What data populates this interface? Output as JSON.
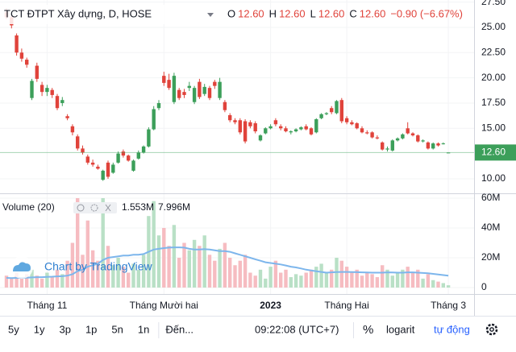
{
  "chart_data": {
    "type": "candlestick",
    "title": "TCT ĐTPT Xây dựng, D, HOSE",
    "legend": [
      {
        "label": "O",
        "value": "12.60"
      },
      {
        "label": "H",
        "value": "12.60"
      },
      {
        "label": "L",
        "value": "12.60"
      },
      {
        "label": "C",
        "value": "12.60"
      }
    ],
    "change": "−0.90 (−6.67%)",
    "categories": [
      null,
      null,
      null,
      null,
      null,
      null,
      null,
      null,
      "Tháng 11",
      null,
      null,
      null,
      null,
      null,
      null,
      null,
      null,
      null,
      null,
      null,
      null,
      null,
      null,
      null,
      null,
      null,
      null,
      null,
      null,
      null,
      null,
      "Tháng Mười hai",
      null,
      null,
      null,
      null,
      null,
      null,
      null,
      null,
      null,
      null,
      null,
      null,
      null,
      null,
      null,
      null,
      null,
      null,
      null,
      null,
      "2023",
      null,
      null,
      null,
      null,
      null,
      null,
      null,
      null,
      null,
      null,
      null,
      null,
      null,
      null,
      "Tháng Hai",
      null,
      null,
      null,
      null,
      null,
      null,
      null,
      null,
      null,
      null,
      null,
      null,
      null,
      null,
      null,
      null,
      null,
      null,
      null,
      "Tháng 3"
    ],
    "open": [
      26.5,
      26.0,
      24.2,
      22.5,
      21.8,
      18.0,
      21.2,
      19.3,
      18.6,
      18.8,
      18.2,
      17.5,
      16.2,
      15.2,
      14.2,
      13.0,
      12.2,
      11.6,
      11.2,
      9.9,
      11.6,
      10.6,
      11.6,
      12.7,
      12.3,
      10.8,
      12.0,
      12.6,
      13.2,
      14.9,
      17.0,
      20.2,
      19.8,
      17.6,
      18.8,
      18.6,
      19.0,
      17.6,
      19.6,
      18.4,
      19.0,
      19.6,
      18.0,
      17.6,
      16.3,
      15.8,
      15.8,
      15.7,
      15.6,
      15.5,
      13.8,
      14.5,
      15.0,
      15.8,
      15.2,
      15.0,
      14.6,
      14.7,
      14.9,
      15.2,
      15.0,
      14.6,
      16.0,
      16.4,
      17.0,
      16.5,
      17.8,
      16.0,
      15.6,
      15.5,
      15.0,
      14.6,
      14.6,
      14.1,
      13.6,
      12.9,
      12.8,
      13.8,
      14.0,
      15.0,
      14.5,
      14.3,
      13.7,
      13.6,
      13.0,
      13.5,
      13.5,
      12.6
    ],
    "high": [
      26.9,
      26.2,
      24.4,
      22.9,
      22.0,
      19.9,
      21.5,
      19.6,
      19.3,
      19.0,
      18.4,
      18.1,
      16.4,
      15.4,
      14.4,
      13.3,
      12.4,
      11.9,
      11.4,
      10.9,
      11.8,
      11.6,
      12.7,
      12.9,
      12.4,
      11.9,
      12.8,
      13.3,
      15.1,
      17.2,
      17.8,
      20.6,
      20.4,
      20.5,
      19.0,
      18.9,
      19.6,
      19.2,
      19.9,
      19.4,
      19.2,
      19.8,
      20.0,
      17.8,
      16.5,
      16.0,
      16.0,
      15.9,
      15.8,
      15.7,
      14.4,
      15.1,
      15.4,
      16.0,
      15.4,
      15.2,
      14.8,
      15.0,
      15.2,
      15.4,
      15.1,
      16.0,
      16.5,
      16.6,
      17.2,
      17.8,
      18.0,
      16.2,
      15.8,
      15.6,
      15.2,
      14.8,
      14.7,
      14.3,
      13.7,
      13.2,
      13.9,
      14.1,
      14.5,
      15.6,
      14.6,
      14.4,
      13.9,
      13.7,
      13.6,
      13.6,
      13.6,
      12.6
    ],
    "low": [
      25.8,
      24.9,
      22.2,
      21.6,
      21.0,
      17.8,
      19.6,
      18.2,
      18.2,
      18.0,
      16.8,
      17.2,
      15.8,
      14.3,
      12.8,
      12.4,
      11.4,
      11.2,
      10.9,
      9.8,
      10.0,
      10.5,
      11.5,
      12.1,
      11.7,
      10.7,
      11.9,
      12.5,
      13.1,
      14.8,
      16.8,
      19.2,
      18.8,
      17.4,
      17.8,
      18.0,
      18.7,
      17.4,
      17.9,
      18.2,
      17.8,
      18.9,
      17.8,
      16.6,
      15.6,
      15.4,
      14.4,
      13.5,
      15.0,
      14.5,
      13.7,
      14.4,
      14.9,
      15.2,
      14.8,
      14.6,
      14.4,
      14.6,
      14.8,
      14.8,
      14.3,
      14.5,
      15.9,
      16.3,
      16.4,
      16.4,
      15.5,
      15.4,
      15.3,
      14.9,
      14.5,
      14.4,
      14.0,
      13.9,
      12.8,
      12.7,
      12.7,
      13.7,
      13.9,
      14.4,
      14.2,
      13.6,
      13.6,
      12.9,
      12.9,
      13.2,
      13.4,
      12.6
    ],
    "close": [
      26.0,
      25.2,
      22.5,
      21.9,
      21.3,
      19.7,
      19.9,
      18.6,
      19.0,
      18.3,
      17.0,
      17.8,
      16.0,
      14.6,
      13.0,
      12.6,
      11.6,
      11.4,
      11.0,
      10.8,
      10.2,
      11.4,
      12.5,
      12.3,
      11.8,
      11.8,
      12.6,
      13.2,
      14.9,
      16.9,
      17.5,
      19.5,
      19.0,
      20.2,
      18.0,
      18.3,
      19.2,
      19.0,
      18.1,
      19.1,
      18.0,
      19.2,
      19.6,
      16.8,
      15.8,
      15.6,
      14.6,
      13.7,
      15.2,
      14.7,
      14.3,
      15.0,
      15.2,
      15.4,
      15.0,
      14.7,
      14.7,
      14.9,
      15.1,
      14.9,
      14.4,
      15.9,
      16.4,
      16.5,
      16.6,
      17.7,
      15.7,
      15.6,
      15.4,
      15.0,
      14.6,
      14.5,
      14.1,
      14.0,
      12.9,
      13.0,
      13.8,
      14.0,
      14.4,
      14.5,
      14.3,
      13.7,
      13.8,
      13.0,
      13.5,
      13.3,
      13.5,
      12.6
    ],
    "up_color": "#3c9f5a",
    "down_color": "#e0433b",
    "ylim": [
      8.56,
      27.71
    ],
    "yticks": [
      {
        "value": 27.5,
        "label": "27.50"
      },
      {
        "value": 25,
        "label": "25.00"
      },
      {
        "value": 22.5,
        "label": "22.50"
      },
      {
        "value": 20,
        "label": "20.00"
      },
      {
        "value": 17.5,
        "label": "17.50"
      },
      {
        "value": 15,
        "label": "15.00"
      },
      {
        "value": 10,
        "label": "10.00"
      }
    ],
    "last_price": {
      "value": 12.6,
      "label": "12.60"
    },
    "volume": {
      "title": "Volume (20)",
      "values": [
        8,
        6,
        10,
        7,
        9,
        12,
        8,
        6,
        10,
        7,
        12,
        9,
        18,
        30,
        60,
        22,
        45,
        25,
        18,
        60,
        28,
        15,
        20,
        14,
        10,
        16,
        12,
        22,
        48,
        58,
        35,
        40,
        28,
        42,
        20,
        30,
        25,
        32,
        28,
        35,
        22,
        18,
        26,
        30,
        20,
        15,
        18,
        22,
        10,
        8,
        12,
        6,
        14,
        18,
        10,
        12,
        7,
        9,
        8,
        10,
        12,
        14,
        16,
        10,
        12,
        20,
        18,
        14,
        10,
        12,
        8,
        10,
        9,
        7,
        15,
        12,
        8,
        10,
        12,
        14,
        10,
        12,
        6,
        9,
        5,
        4,
        3,
        1.553
      ],
      "ma": [
        6.5,
        6.4,
        6.5,
        6.5,
        6.6,
        6.8,
        7.0,
        7.0,
        7.2,
        7.3,
        7.5,
        7.6,
        8,
        9,
        11,
        12,
        14,
        15,
        16,
        18.5,
        20,
        20.5,
        21,
        21.5,
        21.5,
        22,
        22,
        22.5,
        24,
        25.5,
        26,
        26.5,
        26.8,
        27,
        27,
        26.8,
        26,
        25.5,
        25.5,
        25.8,
        25.5,
        25,
        24.5,
        24.5,
        24,
        23,
        22,
        21,
        20,
        19,
        18,
        17,
        16.5,
        16,
        15.5,
        14.8,
        14,
        13.5,
        12.8,
        12,
        11.5,
        11,
        10.5,
        10,
        10.2,
        10.4,
        10.5,
        10.5,
        10.4,
        10.3,
        10.2,
        10.1,
        10,
        10,
        10,
        10.2,
        10.1,
        10,
        10,
        10.2,
        10.2,
        10,
        9.8,
        9.6,
        9.2,
        8.8,
        8.4,
        7.996
      ],
      "last_label": "1.553M",
      "ma_label": "7.996M",
      "ma_color": "#7db6ec",
      "up_color": "#b9e0c6",
      "down_color": "#f6bcc1",
      "ylim": [
        -4.32,
        63.24
      ],
      "yticks": [
        {
          "value": 60,
          "label": "60M"
        },
        {
          "value": 40,
          "label": "40M"
        },
        {
          "value": 20,
          "label": "20M"
        },
        0
      ]
    },
    "watermark": "Chart by TradingView"
  },
  "toolbar": {
    "ranges": [
      "5y",
      "1y",
      "3p",
      "1p",
      "5n",
      "1n"
    ],
    "goto": "Đến...",
    "time": "09:22:08 (UTC+7)",
    "percent": "%",
    "log": "logarit",
    "auto": "tự động"
  }
}
